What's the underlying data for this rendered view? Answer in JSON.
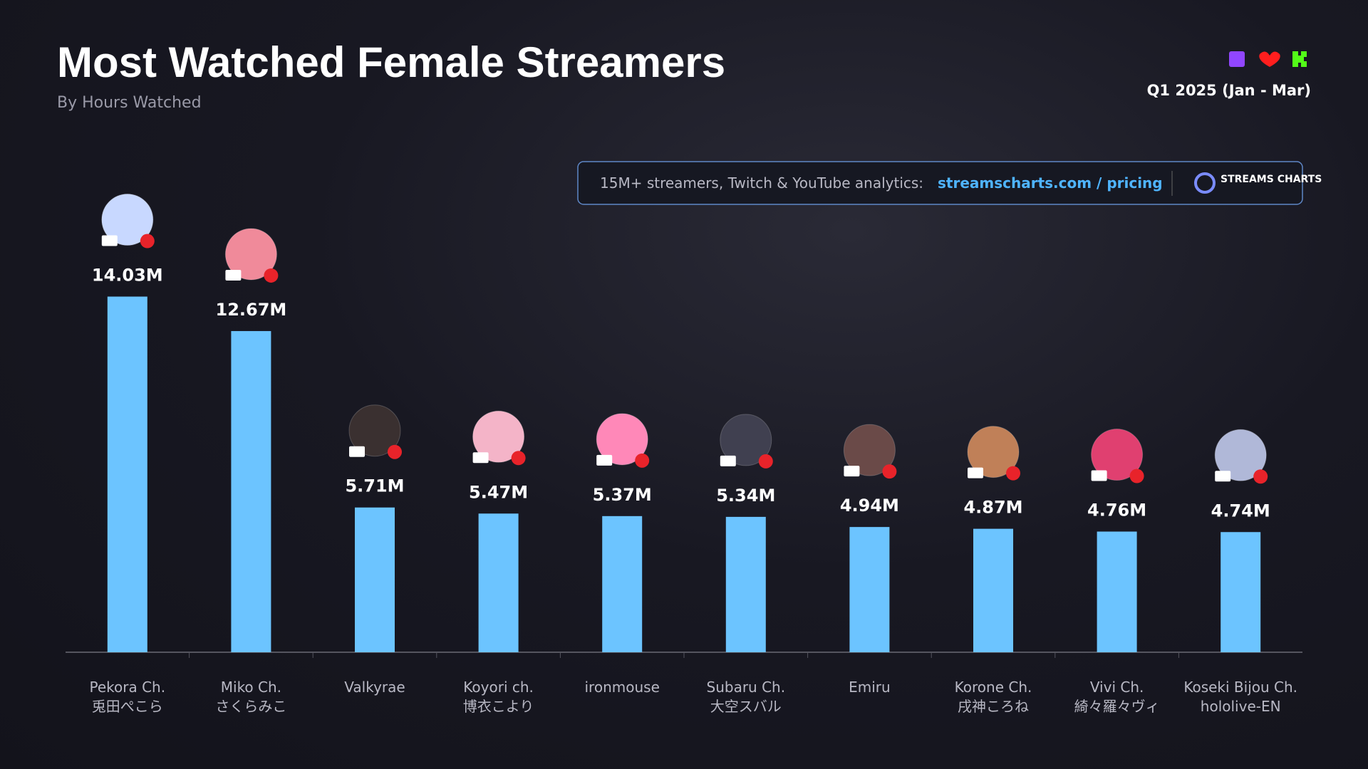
{
  "chart_data": {
    "type": "bar",
    "title": "Most Watched Female Streamers",
    "subtitle": "By Hours Watched",
    "period": "Q1 2025 (Jan - Mar)",
    "banner_text": "15M+ streamers, Twitch & YouTube analytics:",
    "banner_link": "streamscharts.com / pricing",
    "brand": "STREAMS CHARTS",
    "categories": [
      "Pekora Ch.\n兎田ぺこら",
      "Miko Ch.\nさくらみこ",
      "Valkyrae",
      "Koyori ch.\n博衣こより",
      "ironmouse",
      "Subaru Ch.\n大空スバル",
      "Emiru",
      "Korone Ch.\n戌神ころね",
      "Vivi Ch.\n綺々羅々ヴィ",
      "Koseki Bijou Ch.\nhololive-EN"
    ],
    "values": [
      14.03,
      12.67,
      5.71,
      5.47,
      5.37,
      5.34,
      4.94,
      4.87,
      4.76,
      4.74
    ],
    "value_labels": [
      "14.03M",
      "12.67M",
      "5.71M",
      "5.47M",
      "5.37M",
      "5.34M",
      "4.94M",
      "4.87M",
      "4.76M",
      "4.74M"
    ],
    "color": "#6cc4ff",
    "ylim": [
      0,
      15
    ]
  }
}
